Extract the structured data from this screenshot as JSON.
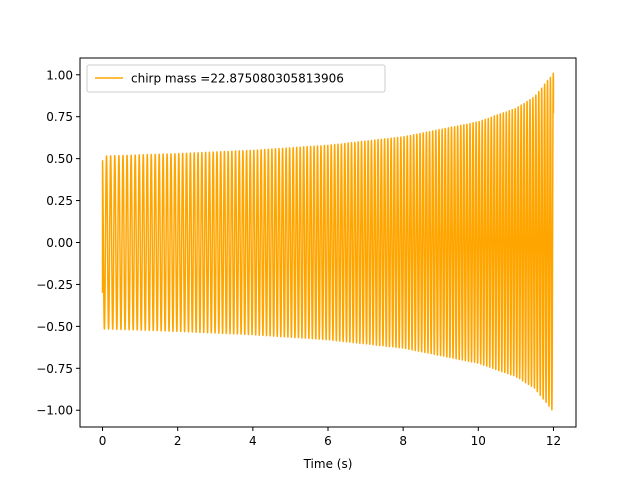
{
  "chart_data": {
    "type": "line",
    "title": "",
    "xlabel": "Time (s)",
    "ylabel": "",
    "xlim": [
      -0.6,
      12.6
    ],
    "ylim": [
      -1.1,
      1.1
    ],
    "x_ticks": [
      0,
      2,
      4,
      6,
      8,
      10,
      12
    ],
    "x_tick_labels": [
      "0",
      "2",
      "4",
      "6",
      "8",
      "10",
      "12"
    ],
    "y_ticks": [
      -1.0,
      -0.75,
      -0.5,
      -0.25,
      0.0,
      0.25,
      0.5,
      0.75,
      1.0
    ],
    "y_tick_labels": [
      "−1.00",
      "−0.75",
      "−0.50",
      "−0.25",
      "0.00",
      "0.25",
      "0.50",
      "0.75",
      "1.00"
    ],
    "grid": false,
    "legend_position": "upper-left",
    "series": [
      {
        "name": "chirp mass =22.875080305813906",
        "color": "#ffa500",
        "t_start": 0.0,
        "t_end": 12.0,
        "start_value": -0.3,
        "end_value": 0.77,
        "envelope": [
          {
            "t": 0.0,
            "amp": 0.515
          },
          {
            "t": 2.0,
            "amp": 0.53
          },
          {
            "t": 4.0,
            "amp": 0.55
          },
          {
            "t": 6.0,
            "amp": 0.58
          },
          {
            "t": 8.0,
            "amp": 0.63
          },
          {
            "t": 10.0,
            "amp": 0.72
          },
          {
            "t": 11.0,
            "amp": 0.8
          },
          {
            "t": 11.5,
            "amp": 0.87
          },
          {
            "t": 12.0,
            "amp": 1.01
          }
        ],
        "frequency_hz": [
          {
            "t": 0.0,
            "f": 9.0
          },
          {
            "t": 12.0,
            "f": 13.0
          }
        ]
      }
    ]
  }
}
